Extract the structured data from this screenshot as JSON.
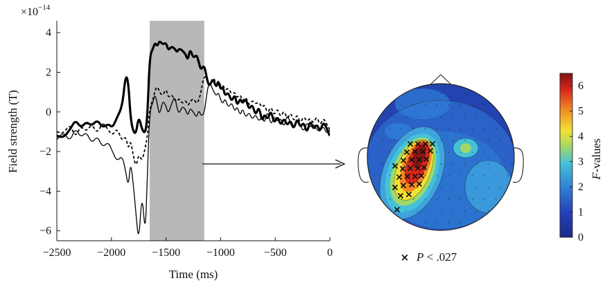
{
  "chart_data": [
    {
      "type": "line",
      "xlabel": "Time (ms)",
      "ylabel": "Field strength (T)",
      "y_scale_label": "×10",
      "y_scale_exponent": "−14",
      "xlim": [
        -2500,
        0
      ],
      "ylim": [
        -6.5,
        4.6
      ],
      "x_ticks": [
        -2500,
        -2000,
        -1500,
        -1000,
        -500,
        0
      ],
      "x_tick_labels": [
        "−2500",
        "−2000",
        "−1500",
        "−1000",
        "−500",
        "0"
      ],
      "y_ticks": [
        -6,
        -4,
        -2,
        0,
        2,
        4
      ],
      "y_tick_labels": [
        "−6",
        "−4",
        "−2",
        "0",
        "2",
        "4"
      ],
      "shaded_interval": [
        -1650,
        -1150
      ],
      "shade_color": "#b8b8b8",
      "series": [
        {
          "style": "thick",
          "x": [
            -2500,
            -2440,
            -2380,
            -2330,
            -2280,
            -2230,
            -2180,
            -2130,
            -2080,
            -2030,
            -1990,
            -1950,
            -1900,
            -1870,
            -1845,
            -1825,
            -1800,
            -1775,
            -1750,
            -1720,
            -1690,
            -1670,
            -1650,
            -1620,
            -1600,
            -1580,
            -1560,
            -1530,
            -1500,
            -1480,
            -1450,
            -1420,
            -1400,
            -1380,
            -1350,
            -1320,
            -1300,
            -1280,
            -1250,
            -1220,
            -1200,
            -1180,
            -1150,
            -1120,
            -1100,
            -1070,
            -1040,
            -1020,
            -1000,
            -980,
            -960,
            -930,
            -900,
            -870,
            -850,
            -820,
            -800,
            -770,
            -740,
            -710,
            -680,
            -650,
            -620,
            -600,
            -570,
            -540,
            -510,
            -480,
            -450,
            -420,
            -390,
            -360,
            -330,
            -300,
            -270,
            -240,
            -210,
            -180,
            -150,
            -120,
            -90,
            -60,
            -30,
            -10,
            0
          ],
          "y": [
            -1.2,
            -1.3,
            -0.9,
            -0.4,
            -0.8,
            -0.5,
            -0.7,
            -0.4,
            -0.8,
            -0.6,
            -0.8,
            -0.3,
            0.3,
            1.9,
            1.5,
            -0.3,
            -1.0,
            -1.1,
            -0.2,
            -0.9,
            -1.1,
            -0.2,
            2.8,
            3.2,
            3.5,
            3.3,
            3.6,
            3.4,
            3.5,
            3.1,
            3.3,
            3.2,
            3.0,
            3.2,
            3.1,
            2.9,
            2.6,
            3.2,
            2.7,
            2.9,
            2.5,
            2.1,
            2.4,
            1.5,
            1.3,
            1.7,
            1.2,
            1.6,
            1.1,
            1.3,
            0.8,
            1.0,
            0.5,
            0.9,
            0.3,
            0.7,
            0.4,
            0.7,
            0.1,
            0.4,
            -0.2,
            0.3,
            -0.5,
            -0.1,
            -0.4,
            0.1,
            -0.6,
            -0.2,
            -0.7,
            -0.3,
            -0.7,
            -0.4,
            -0.9,
            -0.3,
            -0.8,
            -0.5,
            -1.1,
            -0.4,
            -0.9,
            -0.6,
            -1.0,
            -0.5,
            -0.8,
            -1.1,
            -1.2
          ]
        },
        {
          "style": "dashed",
          "x": [
            -2500,
            -2440,
            -2380,
            -2330,
            -2280,
            -2230,
            -2180,
            -2130,
            -2080,
            -2030,
            -1990,
            -1950,
            -1900,
            -1870,
            -1845,
            -1825,
            -1800,
            -1775,
            -1750,
            -1720,
            -1690,
            -1670,
            -1650,
            -1620,
            -1600,
            -1580,
            -1560,
            -1530,
            -1500,
            -1480,
            -1450,
            -1420,
            -1400,
            -1380,
            -1350,
            -1320,
            -1300,
            -1280,
            -1250,
            -1220,
            -1200,
            -1180,
            -1150,
            -1120,
            -1100,
            -1070,
            -1040,
            -1020,
            -1000,
            -980,
            -960,
            -930,
            -900,
            -870,
            -850,
            -820,
            -800,
            -770,
            -740,
            -710,
            -680,
            -650,
            -620,
            -600,
            -570,
            -540,
            -510,
            -480,
            -450,
            -420,
            -390,
            -360,
            -330,
            -300,
            -270,
            -240,
            -210,
            -180,
            -150,
            -120,
            -90,
            -60,
            -30,
            -10,
            0
          ],
          "y": [
            -1.0,
            -1.1,
            -0.6,
            -1.3,
            -0.7,
            -1.0,
            -0.6,
            -1.1,
            -0.5,
            -0.9,
            -1.2,
            -0.8,
            -1.5,
            -1.2,
            -1.9,
            -1.4,
            -2.2,
            -2.8,
            -2.1,
            -2.5,
            -1.8,
            -1.2,
            0.2,
            0.6,
            1.1,
            1.3,
            1.0,
            0.8,
            1.2,
            0.7,
            0.9,
            0.6,
            0.5,
            0.7,
            0.4,
            0.6,
            0.3,
            0.5,
            0.7,
            0.4,
            0.6,
            1.0,
            1.9,
            1.5,
            1.3,
            1.8,
            1.4,
            1.6,
            1.3,
            1.4,
            1.1,
            1.2,
            0.9,
            1.0,
            0.7,
            0.9,
            0.5,
            0.8,
            0.3,
            0.6,
            0.4,
            0.5,
            0.2,
            0.4,
            -0.1,
            0.3,
            -0.2,
            0.2,
            -0.3,
            0.1,
            -0.4,
            0.0,
            -0.5,
            -0.1,
            -0.6,
            -0.2,
            -0.5,
            -0.3,
            -0.6,
            -0.2,
            -0.7,
            -0.3,
            -0.6,
            -0.8,
            -0.9
          ]
        },
        {
          "style": "thin",
          "x": [
            -2500,
            -2440,
            -2380,
            -2330,
            -2280,
            -2230,
            -2180,
            -2130,
            -2080,
            -2030,
            -1990,
            -1950,
            -1900,
            -1870,
            -1845,
            -1825,
            -1800,
            -1775,
            -1750,
            -1720,
            -1690,
            -1670,
            -1650,
            -1620,
            -1600,
            -1580,
            -1560,
            -1530,
            -1500,
            -1480,
            -1450,
            -1420,
            -1400,
            -1380,
            -1350,
            -1320,
            -1300,
            -1280,
            -1250,
            -1220,
            -1200,
            -1180,
            -1150,
            -1120,
            -1100,
            -1070,
            -1040,
            -1020,
            -1000,
            -980,
            -960,
            -930,
            -900,
            -870,
            -850,
            -820,
            -800,
            -770,
            -740,
            -710,
            -680,
            -650,
            -620,
            -600,
            -570,
            -540,
            -510,
            -480,
            -450,
            -420,
            -390,
            -360,
            -330,
            -300,
            -270,
            -240,
            -210,
            -180,
            -150,
            -120,
            -90,
            -60,
            -30,
            -10,
            0
          ],
          "y": [
            -1.4,
            -1.0,
            -1.5,
            -0.8,
            -1.3,
            -1.0,
            -1.6,
            -1.2,
            -1.8,
            -1.5,
            -2.0,
            -2.5,
            -2.2,
            -3.0,
            -3.8,
            -2.5,
            -3.6,
            -5.2,
            -6.6,
            -4.0,
            -6.3,
            -3.0,
            0.0,
            0.5,
            0.9,
            0.4,
            -0.2,
            0.6,
            0.3,
            -0.1,
            0.4,
            0.8,
            0.2,
            -0.1,
            0.3,
            0.1,
            -0.2,
            0.2,
            0.0,
            -0.3,
            0.1,
            -0.2,
            -0.1,
            1.2,
            1.5,
            1.1,
            0.8,
            1.0,
            0.6,
            0.4,
            0.7,
            0.2,
            0.5,
            0.0,
            0.3,
            -0.2,
            0.2,
            -0.3,
            0.0,
            -0.4,
            -0.1,
            -0.5,
            -0.2,
            -0.6,
            0.1,
            -0.7,
            -0.2,
            -0.5,
            -0.3,
            -0.8,
            -0.1,
            -0.6,
            -0.9,
            -0.4,
            -0.7,
            -1.0,
            -0.5,
            -0.8,
            -0.6,
            -0.9,
            -1.0,
            -0.7,
            -1.1,
            -0.9,
            -1.0
          ]
        }
      ]
    },
    {
      "type": "heatmap",
      "colorbar_label": "F-values",
      "colorbar_label_italic": "F",
      "colorbar_label_rest": "-values",
      "clim": [
        0,
        6.5
      ],
      "colorbar_ticks": [
        0,
        1,
        2,
        3,
        4,
        5,
        6
      ],
      "colorbar_tick_labels": [
        "0",
        "1",
        "2",
        "3",
        "4",
        "5",
        "6"
      ],
      "colormap": [
        "#00008f",
        "#0000ff",
        "#0080ff",
        "#00ffff",
        "#80ff80",
        "#ffff00",
        "#ff8000",
        "#ff0000",
        "#800000"
      ],
      "legend_marker": "×",
      "legend_p": "P",
      "legend_text": " < .027"
    }
  ]
}
